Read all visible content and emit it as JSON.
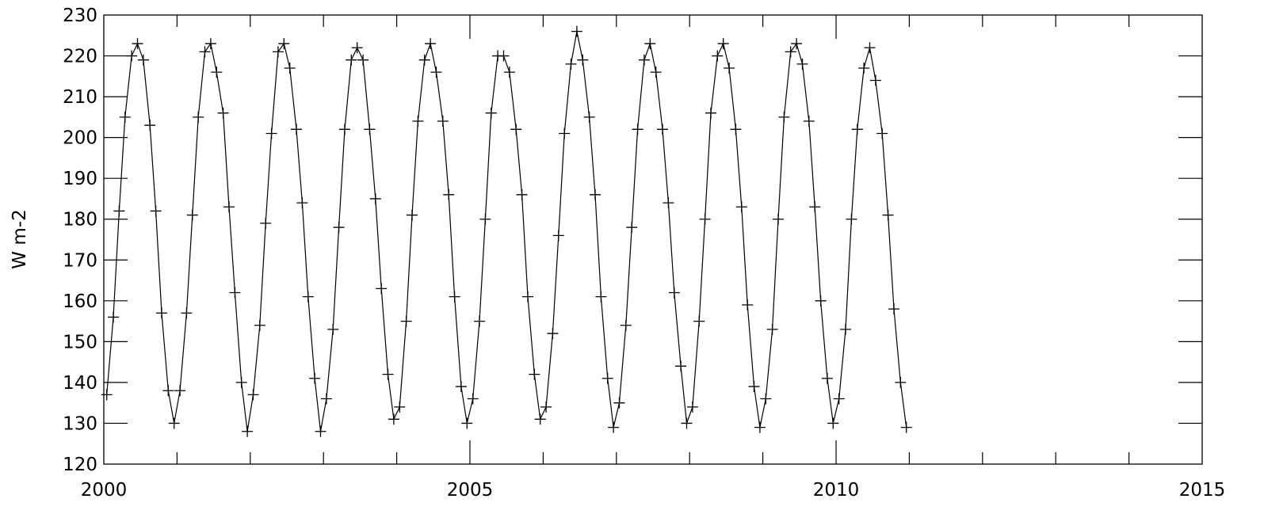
{
  "chart_data": {
    "type": "line",
    "title": "",
    "xlabel": "",
    "ylabel": "W m-2",
    "xlim": [
      2000,
      2015
    ],
    "ylim": [
      120,
      230
    ],
    "xticks": [
      2000,
      2005,
      2010,
      2015
    ],
    "xtick_labels": [
      "2000",
      "2005",
      "2010",
      "2015"
    ],
    "yticks": [
      120,
      130,
      140,
      150,
      160,
      170,
      180,
      190,
      200,
      210,
      220,
      230
    ],
    "ytick_labels": [
      "120",
      "130",
      "140",
      "150",
      "160",
      "170",
      "180",
      "190",
      "200",
      "210",
      "220",
      "230"
    ],
    "grid": false,
    "legend": "none",
    "marker": "+",
    "line_color": "#000000",
    "series": [
      {
        "x": [
          2000.04,
          2000.13,
          2000.21,
          2000.29,
          2000.38,
          2000.46,
          2000.54,
          2000.63,
          2000.71,
          2000.79,
          2000.88,
          2000.96,
          2001.04,
          2001.13,
          2001.21,
          2001.29,
          2001.38,
          2001.46,
          2001.54,
          2001.63,
          2001.71,
          2001.79,
          2001.88,
          2001.96,
          2002.04,
          2002.13,
          2002.21,
          2002.29,
          2002.38,
          2002.46,
          2002.54,
          2002.63,
          2002.71,
          2002.79,
          2002.88,
          2002.96,
          2003.04,
          2003.13,
          2003.21,
          2003.29,
          2003.38,
          2003.46,
          2003.54,
          2003.63,
          2003.71,
          2003.79,
          2003.88,
          2003.96,
          2004.04,
          2004.13,
          2004.21,
          2004.29,
          2004.38,
          2004.46,
          2004.54,
          2004.63,
          2004.71,
          2004.79,
          2004.88,
          2004.96,
          2005.04,
          2005.13,
          2005.21,
          2005.29,
          2005.38,
          2005.46,
          2005.54,
          2005.63,
          2005.71,
          2005.79,
          2005.88,
          2005.96,
          2006.04,
          2006.13,
          2006.21,
          2006.29,
          2006.38,
          2006.46,
          2006.54,
          2006.63,
          2006.71,
          2006.79,
          2006.88,
          2006.96,
          2007.04,
          2007.13,
          2007.21,
          2007.29,
          2007.38,
          2007.46,
          2007.54,
          2007.63,
          2007.71,
          2007.79,
          2007.88,
          2007.96,
          2008.04,
          2008.13,
          2008.21,
          2008.29,
          2008.38,
          2008.46,
          2008.54,
          2008.63,
          2008.71,
          2008.79,
          2008.88,
          2008.96,
          2009.04,
          2009.13,
          2009.21,
          2009.29,
          2009.38,
          2009.46,
          2009.54,
          2009.63,
          2009.71,
          2009.79,
          2009.88,
          2009.96,
          2010.04,
          2010.13,
          2010.21,
          2010.29,
          2010.38,
          2010.46,
          2010.54,
          2010.63,
          2010.71,
          2010.79,
          2010.88,
          2010.96
        ],
        "values": [
          137,
          156,
          182,
          205,
          220,
          223,
          219,
          203,
          182,
          157,
          138,
          130,
          138,
          157,
          181,
          205,
          221,
          223,
          216,
          206,
          183,
          162,
          140,
          128,
          137,
          154,
          179,
          201,
          221,
          223,
          217,
          202,
          184,
          161,
          141,
          128,
          136,
          153,
          178,
          202,
          219,
          222,
          219,
          202,
          185,
          163,
          142,
          131,
          134,
          155,
          181,
          204,
          219,
          223,
          216,
          204,
          186,
          161,
          139,
          130,
          136,
          155,
          180,
          206,
          220,
          220,
          216,
          202,
          186,
          161,
          142,
          131,
          134,
          152,
          176,
          201,
          218,
          226,
          219,
          205,
          186,
          161,
          141,
          129,
          135,
          154,
          178,
          202,
          219,
          223,
          216,
          202,
          184,
          162,
          144,
          130,
          134,
          155,
          180,
          206,
          220,
          223,
          217,
          202,
          183,
          159,
          139,
          129,
          136,
          153,
          180,
          205,
          221,
          223,
          218,
          204,
          183,
          160,
          141,
          130,
          136,
          153,
          180,
          202,
          217,
          222,
          214,
          201,
          181,
          158,
          140,
          129
        ]
      }
    ]
  }
}
